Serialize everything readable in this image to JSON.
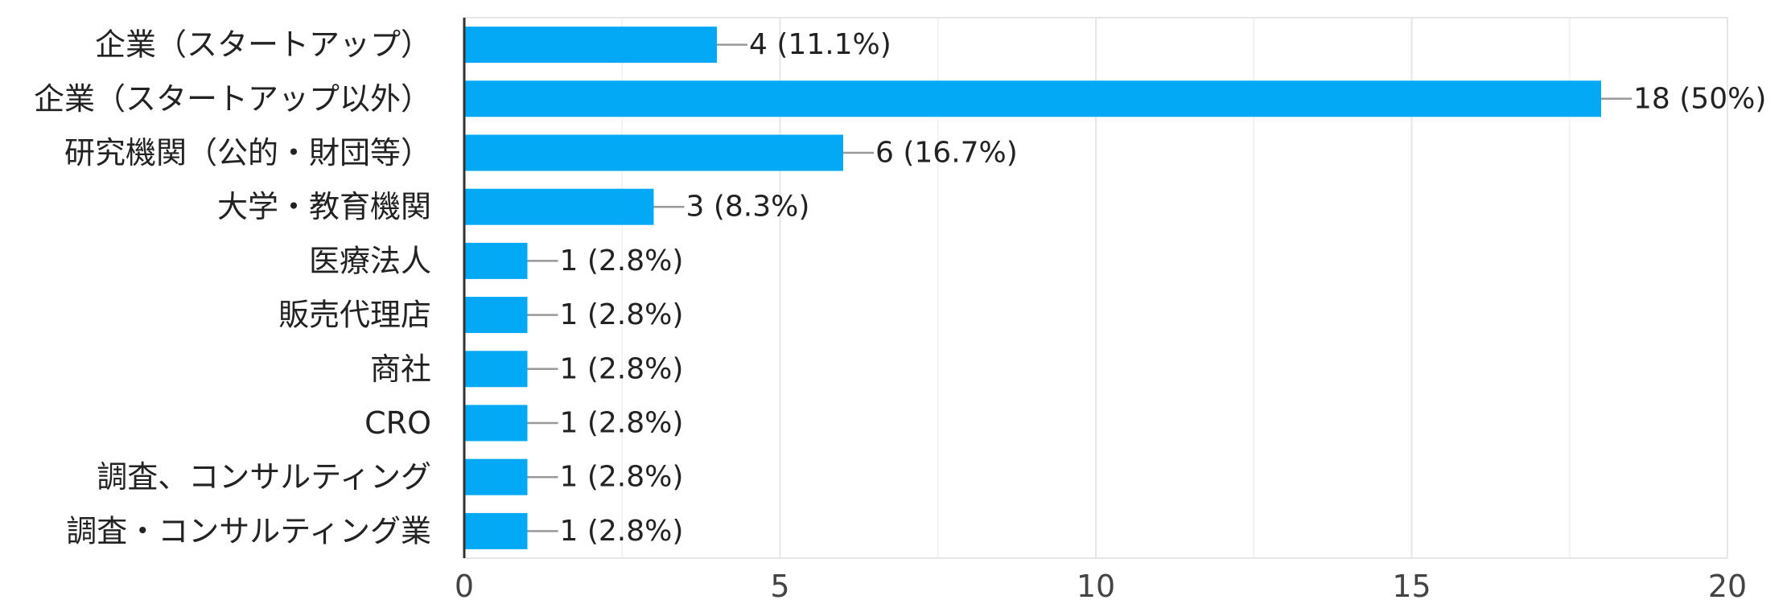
{
  "chart_data": {
    "type": "bar",
    "orientation": "horizontal",
    "categories": [
      "企業（スタートアップ）",
      "企業（スタートアップ以外）",
      "研究機関（公的・財団等）",
      "大学・教育機関",
      "医療法人",
      "販売代理店",
      "商社",
      "CRO",
      "調査、コンサルティング",
      "調査・コンサルティング業"
    ],
    "values": [
      4,
      18,
      6,
      3,
      1,
      1,
      1,
      1,
      1,
      1
    ],
    "data_labels": [
      "4 (11.1%)",
      "18 (50%)",
      "6 (16.7%)",
      "3 (8.3%)",
      "1 (2.8%)",
      "1 (2.8%)",
      "1 (2.8%)",
      "1 (2.8%)",
      "1 (2.8%)",
      "1 (2.8%)"
    ],
    "xlim": [
      0,
      20
    ],
    "xticks": [
      0,
      5,
      10,
      15,
      20
    ],
    "xtick_labels": [
      "0",
      "5",
      "10",
      "15",
      "20"
    ],
    "title": "",
    "xlabel": "",
    "ylabel": "",
    "grid": true,
    "legend": "none",
    "colors": {
      "bar": "#03a9f4",
      "grid_major": "#e6e6e6",
      "grid_minor": "#f2f2f2",
      "axis": "#333333",
      "leader": "#999999"
    }
  }
}
